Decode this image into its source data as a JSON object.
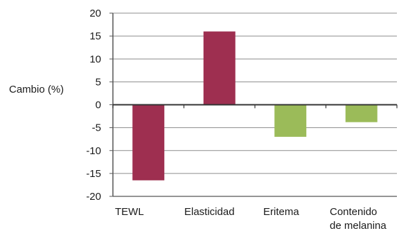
{
  "chart_data": {
    "type": "bar",
    "title": "",
    "xlabel": "",
    "ylabel": "Cambio (%)",
    "ylim": [
      -20,
      20
    ],
    "yticks": [
      20,
      15,
      10,
      5,
      0,
      -5,
      -10,
      -15,
      -20
    ],
    "grid": true,
    "legend": "none",
    "categories": [
      [
        "TEWL"
      ],
      [
        "Elasticidad"
      ],
      [
        "Eritema"
      ],
      [
        "Contenido",
        "de melanina"
      ]
    ],
    "values": [
      -16.5,
      16,
      -7,
      -3.8
    ],
    "colors": [
      "#9E2F50",
      "#9E2F50",
      "#9BBB59",
      "#9BBB59"
    ]
  }
}
